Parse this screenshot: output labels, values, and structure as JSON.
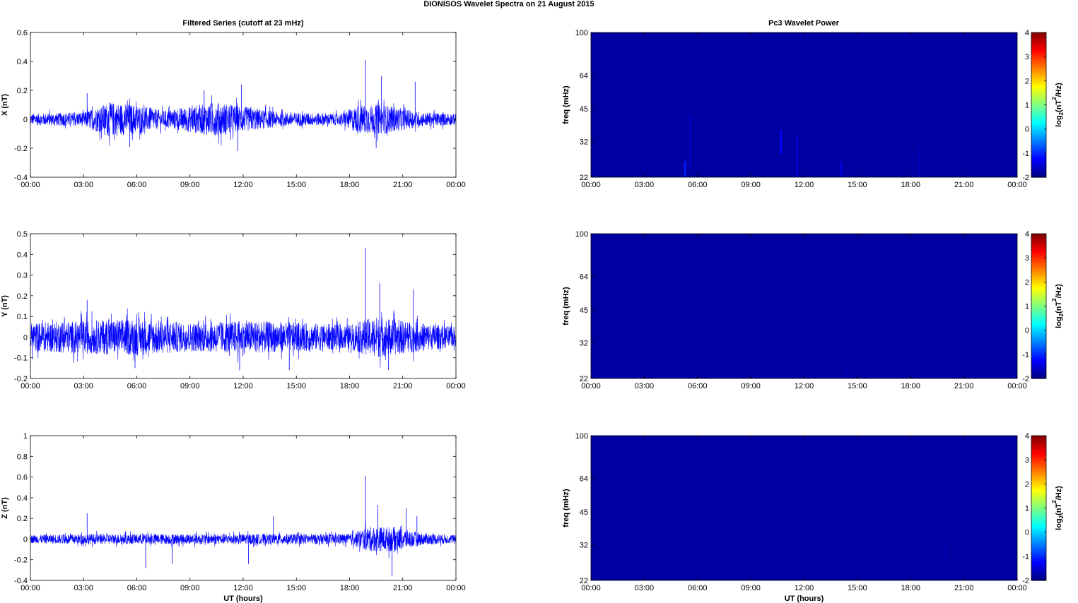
{
  "figure": {
    "title": "DIONISOS Wavelet Spectra on 21 August    2015",
    "left_column_title": "Filtered Series (cutoff at 23 mHz)",
    "right_column_title": "Pc3 Wavelet Power",
    "x_axis_label": "UT (hours)",
    "colorbar_label_prefix": "log",
    "colorbar_label_sub": "2",
    "colorbar_label_mid": "(nT",
    "colorbar_label_sup": "2",
    "colorbar_label_suffix": "/Hz)"
  },
  "chart_data": [
    {
      "type": "line",
      "id": "x-series",
      "ylabel": "X (nT)",
      "xlabel": "",
      "xticks": [
        "00:00",
        "03:00",
        "06:00",
        "09:00",
        "12:00",
        "15:00",
        "18:00",
        "21:00",
        "00:00"
      ],
      "xlim_hours": [
        0,
        24
      ],
      "ylim": [
        -0.4,
        0.6
      ],
      "yticks": [
        -0.4,
        -0.2,
        0,
        0.2,
        0.4,
        0.6
      ],
      "ytick_labels": [
        "-0.4",
        "-0.2",
        "0",
        "0.2",
        "0.4",
        "0.6"
      ],
      "color": "#0000ff",
      "baseline_amplitude": 0.04,
      "envelope": [
        {
          "t": 0,
          "amp": 0.04
        },
        {
          "t": 3,
          "amp": 0.05
        },
        {
          "t": 4.5,
          "amp": 0.12
        },
        {
          "t": 6,
          "amp": 0.1
        },
        {
          "t": 7.5,
          "amp": 0.06
        },
        {
          "t": 10.5,
          "amp": 0.12
        },
        {
          "t": 12,
          "amp": 0.09
        },
        {
          "t": 14,
          "amp": 0.05
        },
        {
          "t": 17.5,
          "amp": 0.04
        },
        {
          "t": 18.5,
          "amp": 0.1
        },
        {
          "t": 20,
          "amp": 0.1
        },
        {
          "t": 22,
          "amp": 0.05
        },
        {
          "t": 24,
          "amp": 0.04
        }
      ],
      "spikes": [
        {
          "t": 3.2,
          "v": 0.18
        },
        {
          "t": 5.6,
          "v": -0.19
        },
        {
          "t": 9.8,
          "v": 0.2
        },
        {
          "t": 11.9,
          "v": 0.24
        },
        {
          "t": 11.7,
          "v": -0.22
        },
        {
          "t": 18.9,
          "v": 0.41
        },
        {
          "t": 19.8,
          "v": 0.3
        },
        {
          "t": 21.7,
          "v": 0.26
        },
        {
          "t": 19.5,
          "v": -0.2
        }
      ]
    },
    {
      "type": "line",
      "id": "y-series",
      "ylabel": "Y (nT)",
      "xlabel": "",
      "xticks": [
        "00:00",
        "03:00",
        "06:00",
        "09:00",
        "12:00",
        "15:00",
        "18:00",
        "21:00",
        "00:00"
      ],
      "xlim_hours": [
        0,
        24
      ],
      "ylim": [
        -0.2,
        0.5
      ],
      "yticks": [
        -0.2,
        -0.1,
        0,
        0.1,
        0.2,
        0.3,
        0.4,
        0.5
      ],
      "ytick_labels": [
        "-0.2",
        "-0.1",
        "0",
        "0.1",
        "0.2",
        "0.3",
        "0.4",
        "0.5"
      ],
      "color": "#0000ff",
      "envelope": [
        {
          "t": 0,
          "amp": 0.07
        },
        {
          "t": 3,
          "amp": 0.08
        },
        {
          "t": 6,
          "amp": 0.09
        },
        {
          "t": 9,
          "amp": 0.07
        },
        {
          "t": 12,
          "amp": 0.08
        },
        {
          "t": 15,
          "amp": 0.07
        },
        {
          "t": 18,
          "amp": 0.06
        },
        {
          "t": 19.5,
          "amp": 0.1
        },
        {
          "t": 21,
          "amp": 0.08
        },
        {
          "t": 24,
          "amp": 0.05
        }
      ],
      "spikes": [
        {
          "t": 3.2,
          "v": 0.18
        },
        {
          "t": 11.8,
          "v": -0.16
        },
        {
          "t": 14.6,
          "v": -0.16
        },
        {
          "t": 18.9,
          "v": 0.43
        },
        {
          "t": 19.7,
          "v": 0.26
        },
        {
          "t": 21.6,
          "v": 0.23
        },
        {
          "t": 20.2,
          "v": -0.16
        },
        {
          "t": 5.9,
          "v": -0.15
        }
      ]
    },
    {
      "type": "line",
      "id": "z-series",
      "ylabel": "Z (nT)",
      "xlabel": "UT (hours)",
      "xticks": [
        "00:00",
        "03:00",
        "06:00",
        "09:00",
        "12:00",
        "15:00",
        "18:00",
        "21:00",
        "00:00"
      ],
      "xlim_hours": [
        0,
        24
      ],
      "ylim": [
        -0.4,
        1.0
      ],
      "yticks": [
        -0.4,
        -0.2,
        0,
        0.2,
        0.4,
        0.6,
        0.8,
        1.0
      ],
      "ytick_labels": [
        "-0.4",
        "-0.2",
        "0",
        "0.2",
        "0.4",
        "0.6",
        "0.8",
        "1"
      ],
      "color": "#0000ff",
      "envelope": [
        {
          "t": 0,
          "amp": 0.04
        },
        {
          "t": 3,
          "amp": 0.05
        },
        {
          "t": 6,
          "amp": 0.05
        },
        {
          "t": 12,
          "amp": 0.05
        },
        {
          "t": 18,
          "amp": 0.05
        },
        {
          "t": 19,
          "amp": 0.12
        },
        {
          "t": 20.5,
          "amp": 0.12
        },
        {
          "t": 22,
          "amp": 0.06
        },
        {
          "t": 24,
          "amp": 0.04
        }
      ],
      "spikes": [
        {
          "t": 3.2,
          "v": 0.25
        },
        {
          "t": 6.5,
          "v": -0.28
        },
        {
          "t": 8.0,
          "v": -0.24
        },
        {
          "t": 12.3,
          "v": -0.24
        },
        {
          "t": 13.7,
          "v": 0.22
        },
        {
          "t": 18.9,
          "v": 0.61
        },
        {
          "t": 19.6,
          "v": 0.33
        },
        {
          "t": 20.4,
          "v": -0.36
        },
        {
          "t": 21.2,
          "v": 0.3
        },
        {
          "t": 21.8,
          "v": 0.22
        }
      ]
    },
    {
      "type": "heatmap",
      "id": "x-wavelet",
      "ylabel": "freq (mHz)",
      "yscale": "log",
      "ylim_mhz": [
        22,
        100
      ],
      "yticks": [
        22,
        32,
        45,
        64,
        100
      ],
      "ytick_labels": [
        "22",
        "32",
        "45",
        "64",
        "100"
      ],
      "xticks": [
        "00:00",
        "03:00",
        "06:00",
        "09:00",
        "12:00",
        "15:00",
        "18:00",
        "21:00",
        "00:00"
      ],
      "xlim_hours": [
        0,
        24
      ],
      "clim": [
        -2,
        4
      ],
      "colorbar_ticks": [
        -2,
        -1,
        0,
        1,
        2,
        3,
        4
      ],
      "colorbar_tick_labels": [
        "-2",
        "-1",
        "0",
        "1",
        "2",
        "3",
        "4"
      ],
      "colormap": "jet",
      "background_level": -1.8,
      "features": [
        {
          "t": 5.3,
          "f_low": 22,
          "f_high": 26,
          "level": -1.1
        },
        {
          "t": 5.6,
          "f_low": 24,
          "f_high": 42,
          "level": -1.55
        },
        {
          "t": 10.7,
          "f_low": 28,
          "f_high": 36,
          "level": -1.25
        },
        {
          "t": 11.6,
          "f_low": 22,
          "f_high": 34,
          "level": -1.45
        },
        {
          "t": 14.1,
          "f_low": 22,
          "f_high": 26,
          "level": -1.4
        },
        {
          "t": 18.5,
          "f_low": 22,
          "f_high": 30,
          "level": -1.65
        }
      ]
    },
    {
      "type": "heatmap",
      "id": "y-wavelet",
      "ylabel": "freq (mHz)",
      "yscale": "log",
      "ylim_mhz": [
        22,
        100
      ],
      "yticks": [
        22,
        32,
        45,
        64,
        100
      ],
      "ytick_labels": [
        "22",
        "32",
        "45",
        "64",
        "100"
      ],
      "xticks": [
        "00:00",
        "03:00",
        "06:00",
        "09:00",
        "12:00",
        "15:00",
        "18:00",
        "21:00",
        "00:00"
      ],
      "xlim_hours": [
        0,
        24
      ],
      "clim": [
        -2,
        4
      ],
      "colorbar_ticks": [
        -2,
        -1,
        0,
        1,
        2,
        3,
        4
      ],
      "colorbar_tick_labels": [
        "-2",
        "-1",
        "0",
        "1",
        "2",
        "3",
        "4"
      ],
      "colormap": "jet",
      "background_level": -1.8,
      "features": [
        {
          "t": 14.4,
          "f_low": 22,
          "f_high": 24,
          "level": -1.7
        },
        {
          "t": 18.8,
          "f_low": 22,
          "f_high": 24,
          "level": -1.7
        }
      ]
    },
    {
      "type": "heatmap",
      "id": "z-wavelet",
      "ylabel": "freq (mHz)",
      "yscale": "log",
      "ylim_mhz": [
        22,
        100
      ],
      "yticks": [
        22,
        32,
        45,
        64,
        100
      ],
      "ytick_labels": [
        "22",
        "32",
        "45",
        "64",
        "100"
      ],
      "xticks": [
        "00:00",
        "03:00",
        "06:00",
        "09:00",
        "12:00",
        "15:00",
        "18:00",
        "21:00",
        "00:00"
      ],
      "xlim_hours": [
        0,
        24
      ],
      "xlabel": "UT (hours)",
      "clim": [
        -2,
        4
      ],
      "colorbar_ticks": [
        -2,
        -1,
        0,
        1,
        2,
        3,
        4
      ],
      "colorbar_tick_labels": [
        "-2",
        "-1",
        "0",
        "1",
        "2",
        "3",
        "4"
      ],
      "colormap": "jet",
      "background_level": -1.8,
      "features": [
        {
          "t": 20.0,
          "f_low": 26,
          "f_high": 32,
          "level": -1.7
        }
      ]
    }
  ]
}
